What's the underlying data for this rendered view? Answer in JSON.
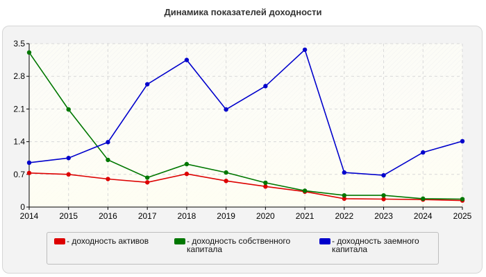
{
  "chart_data": {
    "type": "line",
    "title": "Динамика показателей доходности",
    "x": [
      "2014",
      "2015",
      "2016",
      "2017",
      "2018",
      "2019",
      "2020",
      "2021",
      "2022",
      "2023",
      "2024",
      "2025"
    ],
    "ylim": [
      0,
      3.5
    ],
    "yticks": [
      "0",
      "0.7",
      "1.4",
      "2.1",
      "2.8",
      "3.5"
    ],
    "grid": true,
    "legend_position": "bottom",
    "series": [
      {
        "name": "- доходность активов",
        "color": "#dd0000",
        "values": [
          0.73,
          0.7,
          0.6,
          0.53,
          0.71,
          0.56,
          0.44,
          0.33,
          0.18,
          0.17,
          0.16,
          0.14
        ]
      },
      {
        "name": "- доходность собственного капитала",
        "color": "#007700",
        "values": [
          3.31,
          2.09,
          1.01,
          0.63,
          0.92,
          0.74,
          0.52,
          0.35,
          0.25,
          0.25,
          0.18,
          0.17
        ]
      },
      {
        "name": "- доходность заемного капитала",
        "color": "#0000cc",
        "values": [
          0.95,
          1.05,
          1.39,
          2.63,
          3.15,
          2.09,
          2.59,
          3.37,
          0.74,
          0.68,
          1.17,
          1.41
        ]
      }
    ]
  }
}
